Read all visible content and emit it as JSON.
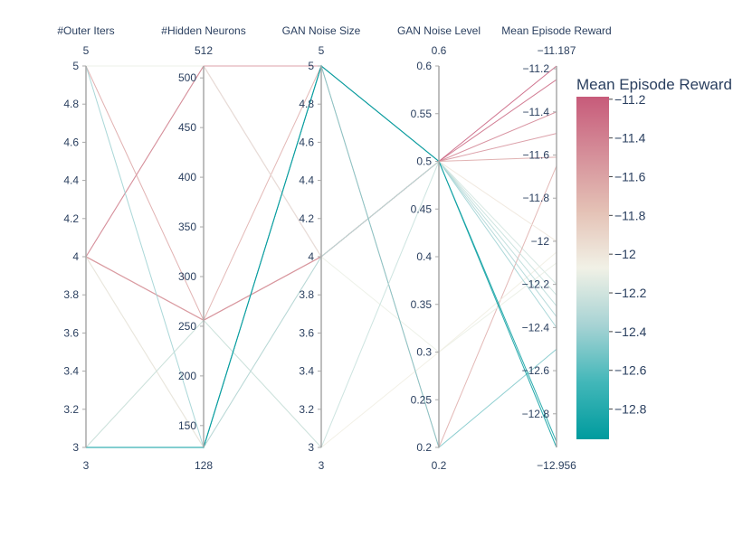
{
  "chart_data": {
    "type": "parallel_coordinates",
    "colorscale": [
      "#009B9E",
      "#42B7B9",
      "#A7D3D4",
      "#F1F1E6",
      "#E4C1B5",
      "#D58E99",
      "#C75B7A"
    ],
    "dimensions": [
      {
        "label": "#Outer Iters",
        "range": [
          3,
          5
        ],
        "ticks": [
          3,
          3.2,
          3.4,
          3.6,
          3.8,
          4,
          4.2,
          4.4,
          4.6,
          4.8,
          5
        ],
        "tick_labels": [
          "3",
          "3.2",
          "3.4",
          "3.6",
          "3.8",
          "4",
          "4.2",
          "4.4",
          "4.6",
          "4.8",
          "5"
        ],
        "min_label": "3",
        "max_label": "5"
      },
      {
        "label": "#Hidden Neurons",
        "range": [
          128,
          512
        ],
        "ticks": [
          150,
          200,
          250,
          300,
          350,
          400,
          450,
          500
        ],
        "tick_labels": [
          "150",
          "200",
          "250",
          "300",
          "350",
          "400",
          "450",
          "500"
        ],
        "min_label": "128",
        "max_label": "512"
      },
      {
        "label": "GAN Noise Size",
        "range": [
          3,
          5
        ],
        "ticks": [
          3,
          3.2,
          3.4,
          3.6,
          3.8,
          4,
          4.2,
          4.4,
          4.6,
          4.8,
          5
        ],
        "tick_labels": [
          "3",
          "3.2",
          "3.4",
          "3.6",
          "3.8",
          "4",
          "4.2",
          "4.4",
          "4.6",
          "4.8",
          "5"
        ],
        "min_label": "3",
        "max_label": "5"
      },
      {
        "label": "GAN Noise Level",
        "range": [
          0.2,
          0.6
        ],
        "ticks": [
          0.2,
          0.25,
          0.3,
          0.35,
          0.4,
          0.45,
          0.5,
          0.55,
          0.6
        ],
        "tick_labels": [
          "0.2",
          "0.25",
          "0.3",
          "0.35",
          "0.4",
          "0.45",
          "0.5",
          "0.55",
          "0.6"
        ],
        "min_label": "0.2",
        "max_label": "0.6"
      },
      {
        "label": "Mean Episode Reward",
        "range": [
          -12.956,
          -11.187
        ],
        "ticks": [
          -12.8,
          -12.6,
          -12.4,
          -12.2,
          -12,
          -11.8,
          -11.6,
          -11.4,
          -11.2
        ],
        "tick_labels": [
          "−12.8",
          "−12.6",
          "−12.4",
          "−12.2",
          "−12",
          "−11.8",
          "−11.6",
          "−11.4",
          "−11.2"
        ],
        "min_label": "−12.956",
        "max_label": "−11.187"
      }
    ],
    "lines": [
      [
        4,
        256,
        4,
        0.5,
        -11.187
      ],
      [
        4,
        256,
        4,
        0.5,
        -11.25
      ],
      [
        4,
        512,
        4,
        0.5,
        -11.4
      ],
      [
        4,
        512,
        5,
        0.5,
        -11.5
      ],
      [
        5,
        256,
        4,
        0.5,
        -11.61
      ],
      [
        4,
        128,
        5,
        0.5,
        -12.2
      ],
      [
        4,
        256,
        5,
        0.2,
        -11.65
      ],
      [
        5,
        512,
        4,
        0.3,
        -12.1
      ],
      [
        3,
        256,
        3,
        0.3,
        -12.05
      ],
      [
        4,
        128,
        4,
        0.5,
        -12.0
      ],
      [
        3,
        128,
        5,
        0.5,
        -12.3
      ],
      [
        3,
        128,
        4,
        0.5,
        -12.35
      ],
      [
        5,
        128,
        5,
        0.5,
        -12.4
      ],
      [
        3,
        128,
        5,
        0.2,
        -12.5
      ],
      [
        3,
        256,
        3,
        0.5,
        -12.25
      ],
      [
        3,
        128,
        5,
        0.5,
        -12.956
      ],
      [
        3,
        128,
        5,
        0.5,
        -12.93
      ]
    ],
    "colorbar": {
      "title": "Mean Episode Reward",
      "range": [
        -12.956,
        -11.187
      ],
      "ticks": [
        -12.8,
        -12.6,
        -12.4,
        -12.2,
        -12,
        -11.8,
        -11.6,
        -11.4,
        -11.2
      ],
      "tick_labels": [
        "−12.8",
        "−12.6",
        "−12.4",
        "−12.2",
        "−12",
        "−11.8",
        "−11.6",
        "−11.4",
        "−11.2"
      ]
    }
  }
}
